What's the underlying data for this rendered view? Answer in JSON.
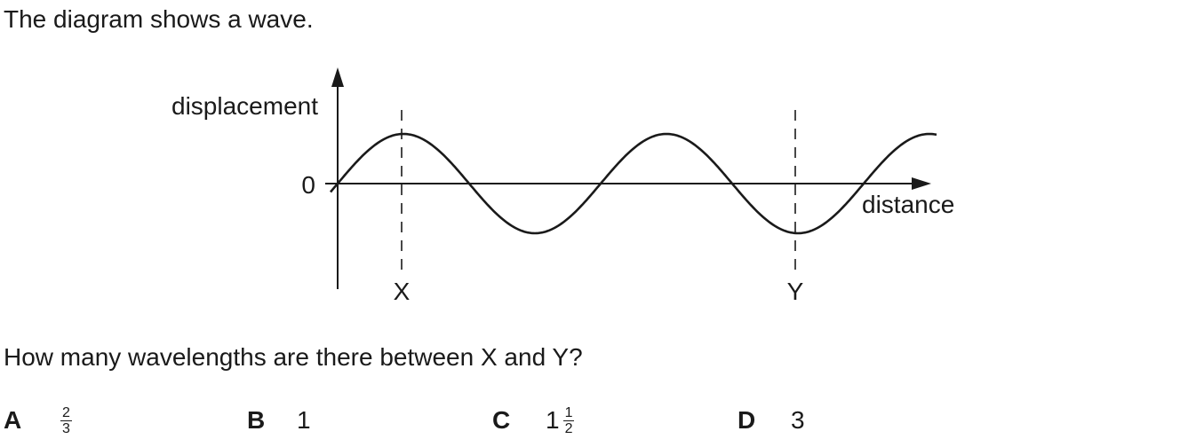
{
  "intro_text": "The diagram shows a wave.",
  "question_text": "How many wavelengths are there between X and Y?",
  "diagram": {
    "y_axis_label": "displacement",
    "x_axis_label": "distance",
    "origin_label": "0",
    "marker_left": "X",
    "marker_right": "Y",
    "wave_cycles_shown": 2.25,
    "marker_left_phase": 0.25,
    "marker_right_phase": 1.75
  },
  "options": [
    {
      "letter": "A",
      "whole": "",
      "numerator": "2",
      "denominator": "3"
    },
    {
      "letter": "B",
      "whole": "1",
      "numerator": "",
      "denominator": ""
    },
    {
      "letter": "C",
      "whole": "1",
      "numerator": "1",
      "denominator": "2"
    },
    {
      "letter": "D",
      "whole": "3",
      "numerator": "",
      "denominator": ""
    }
  ]
}
